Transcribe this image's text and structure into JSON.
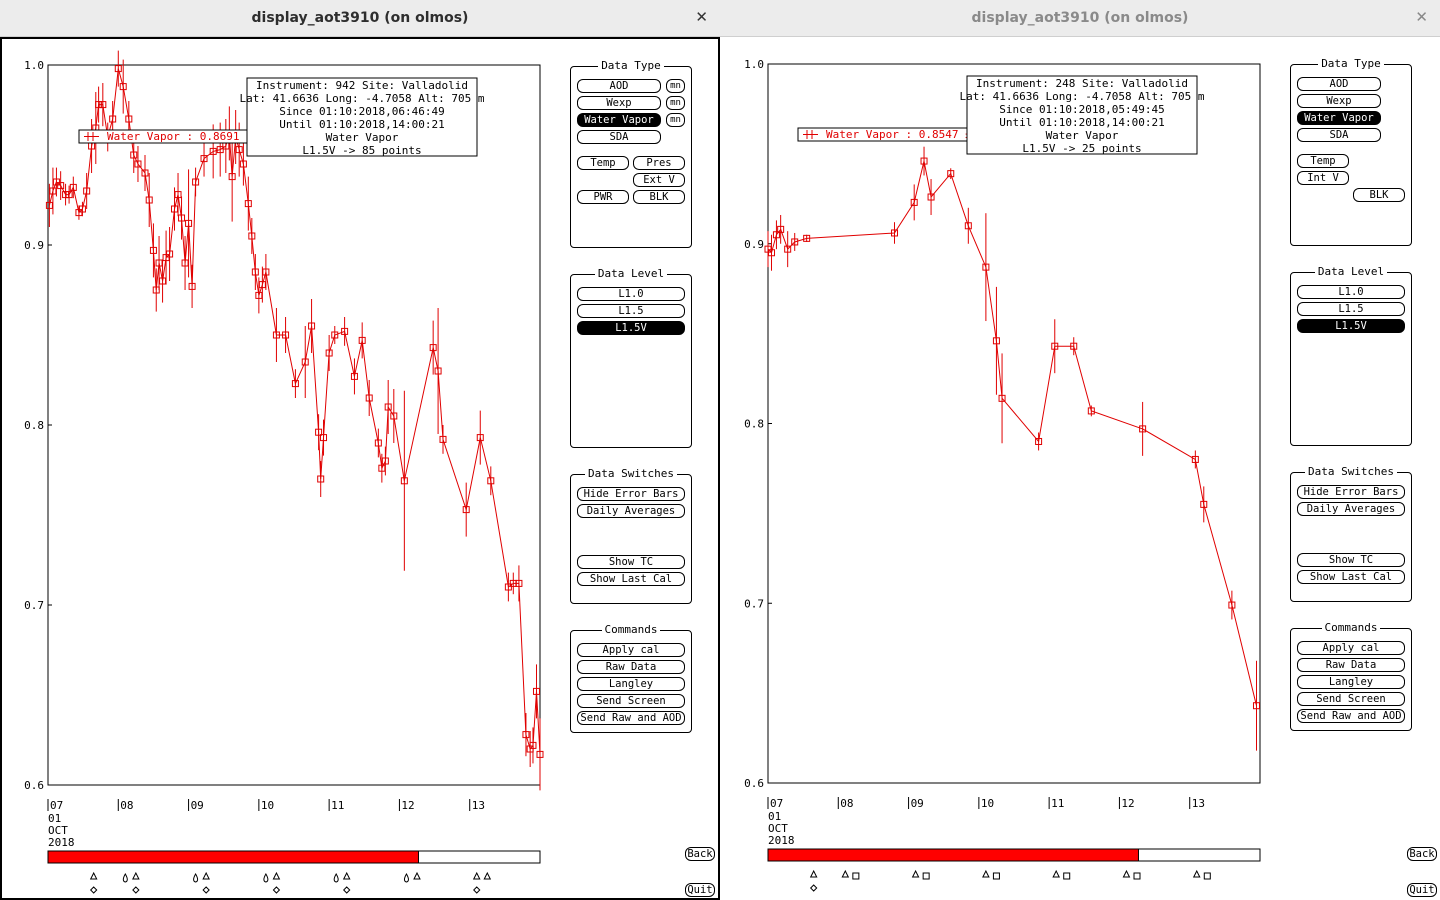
{
  "windows": [
    {
      "id": "left",
      "title": "display_aot3910 (on olmos)",
      "close_glyph": "✕",
      "info": {
        "line1": "Instrument: 942 Site: Valladolid",
        "line2": "Lat: 41.6636 Long: -4.7058 Alt: 705 m",
        "line3": "Since 01:10:2018,06:46:49",
        "line4": "Until 01:10:2018,14:00:21",
        "line5": "Water Vapor",
        "line6": "L1.5V -> 85 points"
      },
      "legend_label": "Water Vapor : 0.8691 ±",
      "progress_fraction": 0.753,
      "chart_data": {
        "type": "line",
        "y_ticks": [
          "1.0",
          "0.9",
          "0.8",
          "0.7",
          "0.6"
        ],
        "ylim": [
          0.6,
          1.0
        ],
        "xlim": [
          7.0,
          14.0
        ],
        "x_ticks": [
          {
            "x": 7,
            "label": "07"
          },
          {
            "x": 8,
            "label": "08"
          },
          {
            "x": 9,
            "label": "09"
          },
          {
            "x": 10,
            "label": "10"
          },
          {
            "x": 11,
            "label": "11"
          },
          {
            "x": 12,
            "label": "12"
          },
          {
            "x": 13,
            "label": "13"
          }
        ],
        "date_lines": [
          "01",
          "OCT",
          "2018"
        ],
        "series_color": "#e00000",
        "points": [
          [
            7.02,
            0.922,
            0.012
          ],
          [
            7.07,
            0.93,
            0.013
          ],
          [
            7.12,
            0.935,
            0.008
          ],
          [
            7.18,
            0.933,
            0.008
          ],
          [
            7.25,
            0.928,
            0.006
          ],
          [
            7.3,
            0.928,
            0.005
          ],
          [
            7.36,
            0.932,
            0.006
          ],
          [
            7.44,
            0.918,
            0.004
          ],
          [
            7.49,
            0.92,
            0.004
          ],
          [
            7.55,
            0.93,
            0.01
          ],
          [
            7.62,
            0.955,
            0.015
          ],
          [
            7.68,
            0.965,
            0.02
          ],
          [
            7.72,
            0.978,
            0.01
          ],
          [
            7.78,
            0.978,
            0.012
          ],
          [
            7.85,
            0.96,
            0.008
          ],
          [
            7.92,
            0.97,
            0.01
          ],
          [
            8.0,
            0.998,
            0.01
          ],
          [
            8.07,
            0.988,
            0.015
          ],
          [
            8.15,
            0.97,
            0.01
          ],
          [
            8.22,
            0.95,
            0.01
          ],
          [
            8.28,
            0.945,
            0.01
          ],
          [
            8.38,
            0.94,
            0.01
          ],
          [
            8.44,
            0.925,
            0.015
          ],
          [
            8.5,
            0.897,
            0.015
          ],
          [
            8.54,
            0.875,
            0.012
          ],
          [
            8.58,
            0.89,
            0.015
          ],
          [
            8.63,
            0.88,
            0.012
          ],
          [
            8.68,
            0.893,
            0.015
          ],
          [
            8.73,
            0.895,
            0.015
          ],
          [
            8.8,
            0.92,
            0.012
          ],
          [
            8.85,
            0.928,
            0.012
          ],
          [
            8.9,
            0.915,
            0.012
          ],
          [
            8.95,
            0.89,
            0.015
          ],
          [
            9.0,
            0.912,
            0.03
          ],
          [
            9.05,
            0.877,
            0.012
          ],
          [
            9.1,
            0.935,
            0.008
          ],
          [
            9.22,
            0.948,
            0.01
          ],
          [
            9.35,
            0.952,
            0.015
          ],
          [
            9.45,
            0.953,
            0.015
          ],
          [
            9.53,
            0.955,
            0.015
          ],
          [
            9.58,
            0.962,
            0.015
          ],
          [
            9.62,
            0.938,
            0.025
          ],
          [
            9.67,
            0.96,
            0.015
          ],
          [
            9.72,
            0.953,
            0.015
          ],
          [
            9.78,
            0.945,
            0.012
          ],
          [
            9.85,
            0.923,
            0.015
          ],
          [
            9.9,
            0.905,
            0.01
          ],
          [
            9.95,
            0.885,
            0.01
          ],
          [
            10.0,
            0.872,
            0.01
          ],
          [
            10.05,
            0.878,
            0.01
          ],
          [
            10.1,
            0.885,
            0.01
          ],
          [
            10.25,
            0.85,
            0.015
          ],
          [
            10.38,
            0.85,
            0.01
          ],
          [
            10.52,
            0.823,
            0.008
          ],
          [
            10.66,
            0.835,
            0.02
          ],
          [
            10.75,
            0.855,
            0.015
          ],
          [
            10.85,
            0.796,
            0.01
          ],
          [
            10.88,
            0.77,
            0.01
          ],
          [
            10.92,
            0.793,
            0.01
          ],
          [
            11.0,
            0.84,
            0.01
          ],
          [
            11.08,
            0.85,
            0.005
          ],
          [
            11.22,
            0.852,
            0.008
          ],
          [
            11.36,
            0.827,
            0.01
          ],
          [
            11.47,
            0.847,
            0.01
          ],
          [
            11.57,
            0.815,
            0.01
          ],
          [
            11.7,
            0.79,
            0.008
          ],
          [
            11.75,
            0.776,
            0.008
          ],
          [
            11.8,
            0.78,
            0.008
          ],
          [
            11.84,
            0.81,
            0.015
          ],
          [
            11.92,
            0.805,
            0.015
          ],
          [
            12.07,
            0.769,
            0.05
          ],
          [
            12.48,
            0.843,
            0.015
          ],
          [
            12.55,
            0.83,
            0.035
          ],
          [
            12.62,
            0.792,
            0.008
          ],
          [
            12.95,
            0.753,
            0.015
          ],
          [
            13.15,
            0.793,
            0.015
          ],
          [
            13.3,
            0.769,
            0.008
          ],
          [
            13.55,
            0.71,
            0.008
          ],
          [
            13.62,
            0.712,
            0.006
          ],
          [
            13.7,
            0.712,
            0.01
          ],
          [
            13.8,
            0.628,
            0.012
          ],
          [
            13.86,
            0.62,
            0.01
          ],
          [
            13.9,
            0.622,
            0.01
          ],
          [
            13.95,
            0.652,
            0.015
          ],
          [
            14.0,
            0.617,
            0.02
          ]
        ],
        "time_marks": [
          {
            "x": 7.65,
            "shapes": [
              "tri",
              "dia"
            ]
          },
          {
            "x": 8.1,
            "shapes": [
              "drop"
            ]
          },
          {
            "x": 8.25,
            "shapes": [
              "tri",
              "dia"
            ]
          },
          {
            "x": 9.1,
            "shapes": [
              "drop"
            ]
          },
          {
            "x": 9.25,
            "shapes": [
              "tri",
              "dia"
            ]
          },
          {
            "x": 10.1,
            "shapes": [
              "drop"
            ]
          },
          {
            "x": 10.25,
            "shapes": [
              "tri",
              "dia"
            ]
          },
          {
            "x": 11.1,
            "shapes": [
              "drop"
            ]
          },
          {
            "x": 11.25,
            "shapes": [
              "tri",
              "dia"
            ]
          },
          {
            "x": 12.1,
            "shapes": [
              "drop"
            ]
          },
          {
            "x": 12.25,
            "shapes": [
              "tri"
            ]
          },
          {
            "x": 13.1,
            "shapes": [
              "tri",
              "dia"
            ]
          },
          {
            "x": 13.25,
            "shapes": [
              "tri"
            ]
          }
        ]
      },
      "panels": {
        "data_type": {
          "title": "Data Type",
          "buttons": [
            {
              "label": "AOD",
              "on": false
            },
            {
              "label": "Wexp",
              "on": false
            },
            {
              "label": "Water Vapor",
              "on": true
            },
            {
              "label": "SDA",
              "on": false
            }
          ],
          "mn_label": "mn",
          "extra": [
            {
              "label": "Temp"
            },
            {
              "label": "Pres"
            },
            {
              "label": "Ext V"
            },
            {
              "label": "PWR"
            },
            {
              "label": "BLK"
            }
          ]
        },
        "data_level": {
          "title": "Data Level",
          "buttons": [
            {
              "label": "L1.0",
              "on": false
            },
            {
              "label": "L1.5",
              "on": false
            },
            {
              "label": "L1.5V",
              "on": true
            }
          ]
        },
        "data_switches": {
          "title": "Data Switches",
          "buttons": [
            {
              "label": "Hide Error Bars"
            },
            {
              "label": "Daily Averages"
            },
            {
              "label": "Show TC"
            },
            {
              "label": "Show Last Cal"
            }
          ]
        },
        "commands": {
          "title": "Commands",
          "buttons": [
            {
              "label": "Apply cal"
            },
            {
              "label": "Raw Data"
            },
            {
              "label": "Langley"
            },
            {
              "label": "Send Screen"
            },
            {
              "label": "Send Raw and AOD"
            }
          ]
        }
      },
      "nav": {
        "back": "Back",
        "quit": "Quit"
      }
    },
    {
      "id": "right",
      "title": "display_aot3910 (on olmos)",
      "close_glyph": "✕",
      "info": {
        "line1": "Instrument: 248 Site: Valladolid",
        "line2": "Lat: 41.6636 Long: -4.7058 Alt: 705 m",
        "line3": "Since 01:10:2018,05:49:45",
        "line4": "Until 01:10:2018,14:00:21",
        "line5": "Water Vapor",
        "line6": "L1.5V -> 25 points"
      },
      "legend_label": "Water Vapor : 0.8547 ±",
      "progress_fraction": 0.753,
      "chart_data": {
        "type": "line",
        "y_ticks": [
          "1.0",
          "0.9",
          "0.8",
          "0.7",
          "0.6"
        ],
        "ylim": [
          0.6,
          1.0
        ],
        "xlim": [
          7.0,
          14.0
        ],
        "x_ticks": [
          {
            "x": 7,
            "label": "07"
          },
          {
            "x": 8,
            "label": "08"
          },
          {
            "x": 9,
            "label": "09"
          },
          {
            "x": 10,
            "label": "10"
          },
          {
            "x": 11,
            "label": "11"
          },
          {
            "x": 12,
            "label": "12"
          },
          {
            "x": 13,
            "label": "13"
          }
        ],
        "date_lines": [
          "01",
          "OCT",
          "2018"
        ],
        "series_color": "#e00000",
        "points": [
          [
            7.0,
            0.897,
            0.01
          ],
          [
            7.05,
            0.895,
            0.01
          ],
          [
            7.12,
            0.905,
            0.008
          ],
          [
            7.18,
            0.908,
            0.008
          ],
          [
            7.28,
            0.897,
            0.01
          ],
          [
            7.38,
            0.901,
            0.005
          ],
          [
            7.55,
            0.903,
            0.002
          ],
          [
            8.8,
            0.906,
            0.006
          ],
          [
            9.08,
            0.923,
            0.01
          ],
          [
            9.22,
            0.946,
            0.008
          ],
          [
            9.32,
            0.926,
            0.01
          ],
          [
            9.6,
            0.939,
            0.003
          ],
          [
            9.85,
            0.91,
            0.01
          ],
          [
            10.1,
            0.887,
            0.03
          ],
          [
            10.25,
            0.846,
            0.03
          ],
          [
            10.33,
            0.814,
            0.025
          ],
          [
            10.85,
            0.79,
            0.005
          ],
          [
            11.08,
            0.843,
            0.015
          ],
          [
            11.35,
            0.843,
            0.005
          ],
          [
            11.6,
            0.807,
            0.003
          ],
          [
            12.33,
            0.797,
            0.015
          ],
          [
            13.08,
            0.78,
            0.005
          ],
          [
            13.2,
            0.755,
            0.01
          ],
          [
            13.6,
            0.699,
            0.008
          ],
          [
            13.95,
            0.643,
            0.025
          ]
        ],
        "time_marks": [
          {
            "x": 7.65,
            "shapes": [
              "tri",
              "dia"
            ]
          },
          {
            "x": 8.1,
            "shapes": [
              "tri"
            ]
          },
          {
            "x": 8.25,
            "shapes": [
              "sq"
            ]
          },
          {
            "x": 9.1,
            "shapes": [
              "tri"
            ]
          },
          {
            "x": 9.25,
            "shapes": [
              "sq"
            ]
          },
          {
            "x": 10.1,
            "shapes": [
              "tri"
            ]
          },
          {
            "x": 10.25,
            "shapes": [
              "sq"
            ]
          },
          {
            "x": 11.1,
            "shapes": [
              "tri"
            ]
          },
          {
            "x": 11.25,
            "shapes": [
              "sq"
            ]
          },
          {
            "x": 12.1,
            "shapes": [
              "tri"
            ]
          },
          {
            "x": 12.25,
            "shapes": [
              "sq"
            ]
          },
          {
            "x": 13.1,
            "shapes": [
              "tri"
            ]
          },
          {
            "x": 13.25,
            "shapes": [
              "sq"
            ]
          }
        ]
      },
      "panels": {
        "data_type": {
          "title": "Data Type",
          "buttons": [
            {
              "label": "AOD",
              "on": false
            },
            {
              "label": "Wexp",
              "on": false
            },
            {
              "label": "Water Vapor",
              "on": true
            },
            {
              "label": "SDA",
              "on": false
            }
          ],
          "extra": [
            {
              "label": "Temp"
            },
            {
              "label": "Int V"
            },
            {
              "label": "BLK"
            }
          ]
        },
        "data_level": {
          "title": "Data Level",
          "buttons": [
            {
              "label": "L1.0",
              "on": false
            },
            {
              "label": "L1.5",
              "on": false
            },
            {
              "label": "L1.5V",
              "on": true
            }
          ]
        },
        "data_switches": {
          "title": "Data Switches",
          "buttons": [
            {
              "label": "Hide Error Bars"
            },
            {
              "label": "Daily Averages"
            },
            {
              "label": "Show TC"
            },
            {
              "label": "Show Last Cal"
            }
          ]
        },
        "commands": {
          "title": "Commands",
          "buttons": [
            {
              "label": "Apply cal"
            },
            {
              "label": "Raw Data"
            },
            {
              "label": "Langley"
            },
            {
              "label": "Send Screen"
            },
            {
              "label": "Send Raw and AOD"
            }
          ]
        }
      },
      "nav": {
        "back": "Back",
        "quit": "Quit"
      }
    }
  ]
}
